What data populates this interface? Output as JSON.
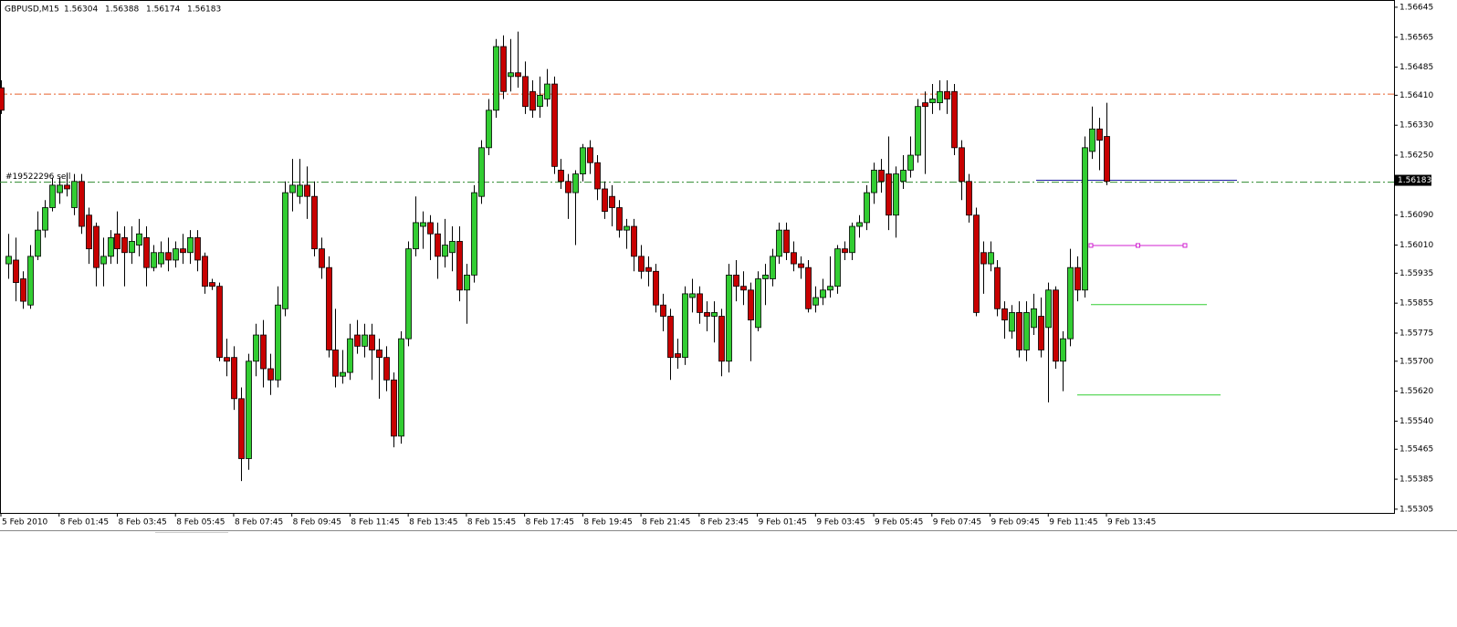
{
  "chart_data": {
    "type": "candlestick",
    "header": {
      "symbol": "GBPUSD,M15",
      "open": 1.56304,
      "high": 1.56388,
      "low": 1.56174,
      "close": 1.56183
    },
    "up_color": "#32cd32",
    "down_color": "#c80000",
    "ylim": [
      1.55295,
      1.56657
    ],
    "yticks": [
      1.56645,
      1.56565,
      1.56485,
      {
        "value": 1.5641,
        "label": "1.56410"
      },
      {
        "value": 1.5633,
        "label": "1.56330"
      },
      {
        "value": 1.5625,
        "label": "1.56250"
      },
      {
        "value": 1.5609,
        "label": "1.56090"
      },
      {
        "value": 1.5601,
        "label": "1.56010"
      },
      1.55935,
      1.55855,
      1.55775,
      {
        "value": 1.557,
        "label": "1.55700"
      },
      {
        "value": 1.5562,
        "label": "1.55620"
      },
      {
        "value": 1.5554,
        "label": "1.55540"
      },
      1.55465,
      1.55385,
      1.55305
    ],
    "categories": [
      "5 Feb 2010",
      null,
      null,
      null,
      null,
      null,
      null,
      null,
      "8 Feb 01:45",
      null,
      null,
      null,
      null,
      null,
      null,
      null,
      "8 Feb 03:45",
      null,
      null,
      null,
      null,
      null,
      null,
      null,
      "8 Feb 05:45",
      null,
      null,
      null,
      null,
      null,
      null,
      null,
      "8 Feb 07:45",
      null,
      null,
      null,
      null,
      null,
      null,
      null,
      "8 Feb 09:45",
      null,
      null,
      null,
      null,
      null,
      null,
      null,
      "8 Feb 11:45",
      null,
      null,
      null,
      null,
      null,
      null,
      null,
      "8 Feb 13:45",
      null,
      null,
      null,
      null,
      null,
      null,
      null,
      "8 Feb 15:45",
      null,
      null,
      null,
      null,
      null,
      null,
      null,
      "8 Feb 17:45",
      null,
      null,
      null,
      null,
      null,
      null,
      null,
      "8 Feb 19:45",
      null,
      null,
      null,
      null,
      null,
      null,
      null,
      "8 Feb 21:45",
      null,
      null,
      null,
      null,
      null,
      null,
      null,
      "8 Feb 23:45",
      null,
      null,
      null,
      null,
      null,
      null,
      null,
      "9 Feb 01:45",
      null,
      null,
      null,
      null,
      null,
      null,
      null,
      "9 Feb 03:45",
      null,
      null,
      null,
      null,
      null,
      null,
      null,
      "9 Feb 05:45",
      null,
      null,
      null,
      null,
      null,
      null,
      null,
      "9 Feb 07:45",
      null,
      null,
      null,
      null,
      null,
      null,
      null,
      "9 Feb 09:45",
      null,
      null,
      null,
      null,
      null,
      null,
      null,
      "9 Feb 11:45",
      null,
      null,
      null,
      null,
      null,
      null,
      null,
      "9 Feb 13:45"
    ],
    "candles": [
      [
        1.5643,
        1.5645,
        1.5636,
        1.5637
      ],
      [
        1.5596,
        1.5604,
        1.5592,
        1.5598
      ],
      [
        1.5597,
        1.5603,
        1.5586,
        1.5591
      ],
      [
        1.5592,
        1.5594,
        1.5584,
        1.5586
      ],
      [
        1.5585,
        1.5601,
        1.5584,
        1.5598
      ],
      [
        1.5598,
        1.561,
        1.5597,
        1.5605
      ],
      [
        1.5605,
        1.5613,
        1.5603,
        1.5611
      ],
      [
        1.5611,
        1.5619,
        1.561,
        1.5617
      ],
      [
        1.5615,
        1.5619,
        1.5612,
        1.5617
      ],
      [
        1.5617,
        1.562,
        1.5614,
        1.5616
      ],
      [
        1.5611,
        1.562,
        1.5609,
        1.5618
      ],
      [
        1.5618,
        1.562,
        1.5604,
        1.5606
      ],
      [
        1.5609,
        1.5611,
        1.5596,
        1.56
      ],
      [
        1.5606,
        1.5607,
        1.559,
        1.5595
      ],
      [
        1.5596,
        1.5603,
        1.559,
        1.5598
      ],
      [
        1.5598,
        1.5605,
        1.5596,
        1.5603
      ],
      [
        1.5604,
        1.561,
        1.5596,
        1.56
      ],
      [
        1.5603,
        1.5606,
        1.559,
        1.5599
      ],
      [
        1.5599,
        1.5606,
        1.5596,
        1.5602
      ],
      [
        1.5601,
        1.5608,
        1.5598,
        1.5604
      ],
      [
        1.5603,
        1.5606,
        1.559,
        1.5595
      ],
      [
        1.5595,
        1.5601,
        1.5594,
        1.5599
      ],
      [
        1.5596,
        1.5602,
        1.5595,
        1.5599
      ],
      [
        1.5599,
        1.5603,
        1.5594,
        1.5597
      ],
      [
        1.5597,
        1.5602,
        1.5595,
        1.56
      ],
      [
        1.56,
        1.5604,
        1.5596,
        1.5599
      ],
      [
        1.5599,
        1.5605,
        1.5596,
        1.5603
      ],
      [
        1.5603,
        1.5605,
        1.5594,
        1.5597
      ],
      [
        1.5598,
        1.5599,
        1.5588,
        1.559
      ],
      [
        1.5591,
        1.5592,
        1.5589,
        1.559
      ],
      [
        1.559,
        1.5591,
        1.557,
        1.5571
      ],
      [
        1.5571,
        1.5576,
        1.5566,
        1.557
      ],
      [
        1.5571,
        1.5574,
        1.5557,
        1.556
      ],
      [
        1.556,
        1.5563,
        1.5538,
        1.5544
      ],
      [
        1.5544,
        1.5572,
        1.5541,
        1.557
      ],
      [
        1.557,
        1.558,
        1.5566,
        1.5577
      ],
      [
        1.5577,
        1.5581,
        1.5563,
        1.5568
      ],
      [
        1.5568,
        1.5572,
        1.5561,
        1.5565
      ],
      [
        1.5565,
        1.559,
        1.5563,
        1.5585
      ],
      [
        1.5584,
        1.5618,
        1.5582,
        1.5615
      ],
      [
        1.5615,
        1.5624,
        1.561,
        1.5617
      ],
      [
        1.5614,
        1.5624,
        1.5612,
        1.5617
      ],
      [
        1.5617,
        1.5622,
        1.5608,
        1.5614
      ],
      [
        1.5614,
        1.5618,
        1.5598,
        1.56
      ],
      [
        1.56,
        1.5603,
        1.5592,
        1.5595
      ],
      [
        1.5595,
        1.5598,
        1.5571,
        1.5573
      ],
      [
        1.5573,
        1.5584,
        1.5563,
        1.5566
      ],
      [
        1.5566,
        1.5573,
        1.5564,
        1.5567
      ],
      [
        1.5567,
        1.558,
        1.5565,
        1.5576
      ],
      [
        1.5577,
        1.5581,
        1.5572,
        1.5574
      ],
      [
        1.5574,
        1.558,
        1.5571,
        1.5577
      ],
      [
        1.5577,
        1.558,
        1.5565,
        1.5573
      ],
      [
        1.5573,
        1.5576,
        1.556,
        1.5571
      ],
      [
        1.5571,
        1.5574,
        1.5562,
        1.5565
      ],
      [
        1.5565,
        1.5567,
        1.5547,
        1.555
      ],
      [
        1.555,
        1.5578,
        1.5548,
        1.5576
      ],
      [
        1.5576,
        1.5602,
        1.5574,
        1.56
      ],
      [
        1.56,
        1.5614,
        1.5598,
        1.5607
      ],
      [
        1.5606,
        1.561,
        1.56,
        1.5607
      ],
      [
        1.5607,
        1.5609,
        1.5597,
        1.5604
      ],
      [
        1.5604,
        1.5607,
        1.5592,
        1.5598
      ],
      [
        1.5598,
        1.5608,
        1.5595,
        1.5601
      ],
      [
        1.5599,
        1.5606,
        1.5594,
        1.5602
      ],
      [
        1.5602,
        1.5606,
        1.5586,
        1.5589
      ],
      [
        1.5589,
        1.5596,
        1.558,
        1.5593
      ],
      [
        1.5593,
        1.5617,
        1.5591,
        1.5615
      ],
      [
        1.5614,
        1.5629,
        1.5612,
        1.5627
      ],
      [
        1.5627,
        1.564,
        1.5625,
        1.5637
      ],
      [
        1.5637,
        1.5656,
        1.5635,
        1.5654
      ],
      [
        1.5654,
        1.5657,
        1.564,
        1.5642
      ],
      [
        1.5646,
        1.5656,
        1.5642,
        1.5647
      ],
      [
        1.5647,
        1.5658,
        1.5643,
        1.5646
      ],
      [
        1.5646,
        1.565,
        1.5636,
        1.5638
      ],
      [
        1.5642,
        1.5645,
        1.5635,
        1.5637
      ],
      [
        1.5638,
        1.5646,
        1.5635,
        1.5641
      ],
      [
        1.564,
        1.5648,
        1.5638,
        1.5644
      ],
      [
        1.5644,
        1.5646,
        1.562,
        1.5622
      ],
      [
        1.5621,
        1.5624,
        1.5616,
        1.5618
      ],
      [
        1.5618,
        1.562,
        1.5608,
        1.5615
      ],
      [
        1.5615,
        1.5621,
        1.5601,
        1.562
      ],
      [
        1.562,
        1.5628,
        1.5618,
        1.5627
      ],
      [
        1.5627,
        1.5629,
        1.562,
        1.5623
      ],
      [
        1.5623,
        1.5625,
        1.5613,
        1.5616
      ],
      [
        1.5616,
        1.5618,
        1.5608,
        1.561
      ],
      [
        1.5614,
        1.5617,
        1.5606,
        1.5611
      ],
      [
        1.5611,
        1.5613,
        1.5603,
        1.5605
      ],
      [
        1.5605,
        1.5608,
        1.56,
        1.5606
      ],
      [
        1.5606,
        1.5608,
        1.5594,
        1.5598
      ],
      [
        1.5598,
        1.5601,
        1.5592,
        1.5594
      ],
      [
        1.5595,
        1.5598,
        1.559,
        1.5594
      ],
      [
        1.5594,
        1.5596,
        1.5583,
        1.5585
      ],
      [
        1.5585,
        1.5588,
        1.5578,
        1.5582
      ],
      [
        1.5582,
        1.5584,
        1.5565,
        1.5571
      ],
      [
        1.5572,
        1.5576,
        1.5568,
        1.5571
      ],
      [
        1.5571,
        1.559,
        1.5569,
        1.5588
      ],
      [
        1.5587,
        1.5592,
        1.5583,
        1.5588
      ],
      [
        1.5588,
        1.559,
        1.558,
        1.5583
      ],
      [
        1.5583,
        1.5586,
        1.5578,
        1.5582
      ],
      [
        1.5582,
        1.5586,
        1.5575,
        1.5583
      ],
      [
        1.5582,
        1.5584,
        1.5566,
        1.557
      ],
      [
        1.557,
        1.5596,
        1.5567,
        1.5593
      ],
      [
        1.5593,
        1.5597,
        1.5586,
        1.559
      ],
      [
        1.559,
        1.5594,
        1.5585,
        1.5589
      ],
      [
        1.5589,
        1.5591,
        1.557,
        1.5581
      ],
      [
        1.5579,
        1.5594,
        1.5578,
        1.5592
      ],
      [
        1.5592,
        1.5596,
        1.5585,
        1.5593
      ],
      [
        1.5592,
        1.56,
        1.559,
        1.5598
      ],
      [
        1.5598,
        1.5607,
        1.5596,
        1.5605
      ],
      [
        1.5605,
        1.5607,
        1.5597,
        1.5599
      ],
      [
        1.5599,
        1.5602,
        1.5594,
        1.5596
      ],
      [
        1.5596,
        1.5598,
        1.5592,
        1.5595
      ],
      [
        1.5595,
        1.5597,
        1.5583,
        1.5584
      ],
      [
        1.5585,
        1.559,
        1.5583,
        1.5587
      ],
      [
        1.5587,
        1.5592,
        1.5585,
        1.5589
      ],
      [
        1.5589,
        1.5598,
        1.5587,
        1.559
      ],
      [
        1.559,
        1.5601,
        1.5588,
        1.56
      ],
      [
        1.56,
        1.5602,
        1.5597,
        1.5599
      ],
      [
        1.5599,
        1.5607,
        1.5597,
        1.5606
      ],
      [
        1.5606,
        1.5609,
        1.5603,
        1.5607
      ],
      [
        1.5607,
        1.5617,
        1.5605,
        1.5615
      ],
      [
        1.5615,
        1.5623,
        1.5612,
        1.5621
      ],
      [
        1.5621,
        1.5624,
        1.5615,
        1.5618
      ],
      [
        1.562,
        1.563,
        1.5605,
        1.5609
      ],
      [
        1.5609,
        1.5622,
        1.5603,
        1.562
      ],
      [
        1.5618,
        1.5625,
        1.5616,
        1.5621
      ],
      [
        1.5621,
        1.563,
        1.5619,
        1.5625
      ],
      [
        1.5625,
        1.564,
        1.5623,
        1.5638
      ],
      [
        1.5639,
        1.5642,
        1.562,
        1.5638
      ],
      [
        1.5639,
        1.5644,
        1.5636,
        1.564
      ],
      [
        1.5639,
        1.5645,
        1.5637,
        1.5642
      ],
      [
        1.5642,
        1.5645,
        1.5636,
        1.564
      ],
      [
        1.5642,
        1.5644,
        1.5625,
        1.5627
      ],
      [
        1.5627,
        1.5629,
        1.5613,
        1.5618
      ],
      [
        1.5618,
        1.562,
        1.5607,
        1.5609
      ],
      [
        1.5609,
        1.5611,
        1.5582,
        1.5583
      ],
      [
        1.5599,
        1.5602,
        1.5588,
        1.5596
      ],
      [
        1.5596,
        1.5602,
        1.5594,
        1.5599
      ],
      [
        1.5595,
        1.5597,
        1.5582,
        1.5584
      ],
      [
        1.5584,
        1.5586,
        1.5576,
        1.5581
      ],
      [
        1.5578,
        1.5585,
        1.5576,
        1.5583
      ],
      [
        1.5583,
        1.5586,
        1.5571,
        1.5573
      ],
      [
        1.5573,
        1.5586,
        1.557,
        1.5583
      ],
      [
        1.5579,
        1.5588,
        1.5577,
        1.5584
      ],
      [
        1.5582,
        1.5587,
        1.5571,
        1.5573
      ],
      [
        1.5579,
        1.5591,
        1.5559,
        1.5589
      ],
      [
        1.5589,
        1.559,
        1.5568,
        1.557
      ],
      [
        1.557,
        1.5578,
        1.5562,
        1.5576
      ],
      [
        1.5576,
        1.56,
        1.5574,
        1.5595
      ],
      [
        1.5595,
        1.5598,
        1.5586,
        1.5589
      ],
      [
        1.5589,
        1.563,
        1.5587,
        1.5627
      ],
      [
        1.5626,
        1.5638,
        1.5624,
        1.5632
      ],
      [
        1.5632,
        1.5635,
        1.5621,
        1.5629
      ],
      [
        1.563,
        1.5639,
        1.5617,
        1.5618
      ]
    ],
    "levels": [
      {
        "value": 1.56413,
        "color": "#e8602c",
        "style": "dashdot"
      },
      {
        "value": 1.56178,
        "color": "#2e8b2e",
        "style": "dashdot",
        "label": "#19522296 sell"
      }
    ],
    "segments": [
      {
        "value": 1.56183,
        "color": "#1e1ea0"
      },
      {
        "value": 1.56009,
        "color": "#d020d0"
      },
      {
        "value": 1.55851,
        "color": "#32cd32"
      },
      {
        "value": 1.5561,
        "color": "#32cd32"
      }
    ]
  }
}
